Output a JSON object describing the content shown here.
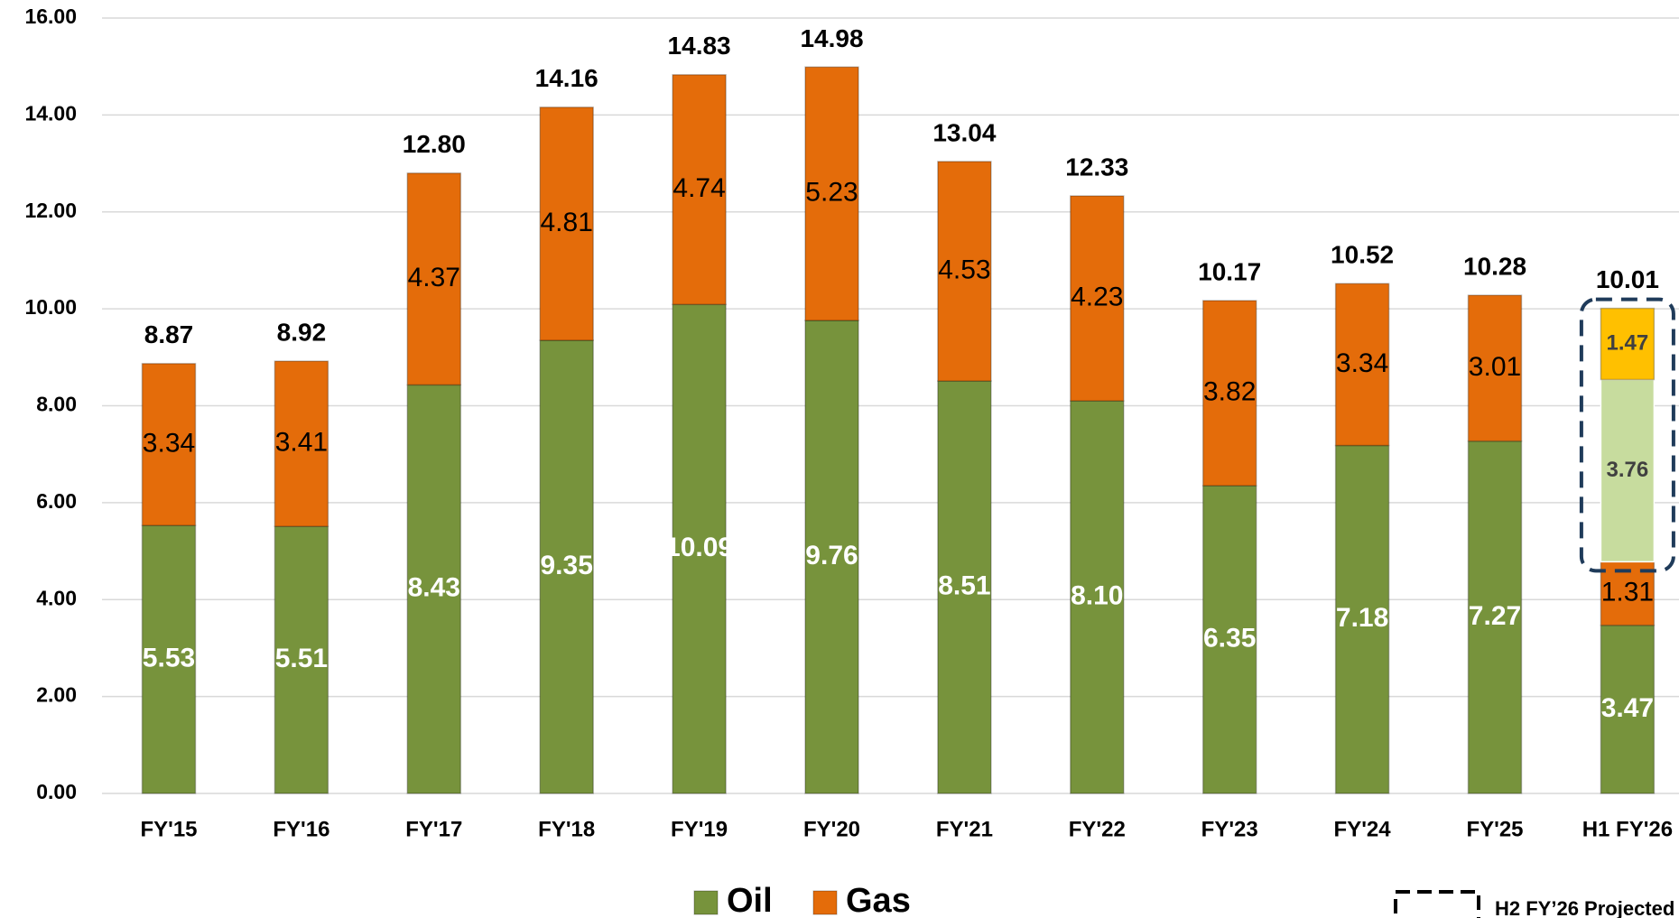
{
  "chart_data": {
    "type": "stacked-bar",
    "categories": [
      "FY'15",
      "FY'16",
      "FY'17",
      "FY'18",
      "FY'19",
      "FY'20",
      "FY'21",
      "FY'22",
      "FY'23",
      "FY'24",
      "FY'25",
      "H1 FY'26"
    ],
    "series": [
      {
        "name": "Oil",
        "color": "#77933c",
        "values": [
          5.53,
          5.51,
          8.43,
          9.35,
          10.09,
          9.76,
          8.51,
          8.1,
          6.35,
          7.18,
          7.27,
          3.47
        ],
        "value_labels": [
          "5.53",
          "5.51",
          "8.43",
          "9.35",
          "10.09",
          "9.76",
          "8.51",
          "8.10",
          "6.35",
          "7.18",
          "7.27",
          "3.47"
        ]
      },
      {
        "name": "Gas",
        "color": "#e46c0a",
        "values": [
          3.34,
          3.41,
          4.37,
          4.81,
          4.74,
          5.23,
          4.53,
          4.23,
          3.82,
          3.34,
          3.01,
          1.31
        ]
      },
      {
        "color": "#c7dc9e",
        "values": [
          null,
          null,
          null,
          null,
          null,
          null,
          null,
          null,
          null,
          null,
          null,
          3.76
        ]
      },
      {
        "color": "#ffc000",
        "values": [
          null,
          null,
          null,
          null,
          null,
          null,
          null,
          null,
          null,
          null,
          null,
          1.47
        ]
      }
    ],
    "totals": [
      8.87,
      8.92,
      12.8,
      14.16,
      14.83,
      14.98,
      13.04,
      12.33,
      10.17,
      10.52,
      10.28,
      10.01
    ],
    "total_labels": [
      "8.87",
      "8.92",
      "12.80",
      "14.16",
      "14.83",
      "14.98",
      "13.04",
      "12.33",
      "10.17",
      "10.52",
      "10.28",
      "10.01"
    ],
    "ylim": [
      0,
      16
    ],
    "yticks": [
      {
        "value": 0,
        "label": "0.00"
      },
      {
        "value": 2,
        "label": "2.00"
      },
      {
        "value": 4,
        "label": "4.00"
      },
      {
        "value": 6,
        "label": "6.00"
      },
      {
        "value": 8,
        "label": "8.00"
      },
      {
        "value": 10,
        "label": "10.00"
      },
      {
        "value": 12,
        "label": "12.00"
      },
      {
        "value": 14,
        "label": "14.00"
      },
      {
        "value": 16,
        "label": "16.00"
      }
    ],
    "grid": true,
    "projection_label": "H2 FY’26 Projected"
  }
}
